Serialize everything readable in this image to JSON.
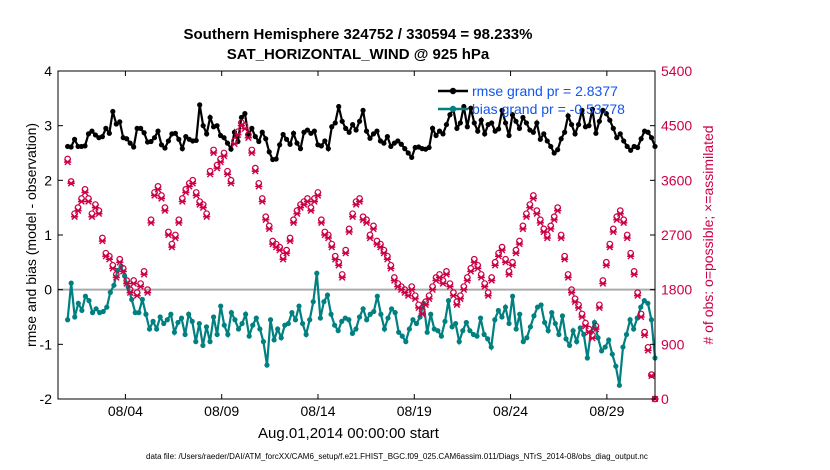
{
  "chart_data": {
    "type": "line",
    "title": "Southern Hemisphere 324752 / 330594 = 98.233%",
    "subtitle": "SAT_HORIZONTAL_WIND @ 925 hPa",
    "xlabel": "Aug.01,2014 00:00:00 start",
    "ylabel_left": "rmse and bias (model - observation)",
    "ylabel_right": "# of obs: o=possible; ×=assimilated",
    "footer": "data file: /Users/raeder/DAI/ATM_forcXX/CAM6_setup/f.e21.FHIST_BGC.f09_025.CAM6assim.011/Diags_NTrS_2014-08/obs_diag_output.nc",
    "x_range_days": [
      0.5,
      31.5
    ],
    "x_ticks": [
      {
        "day": 4,
        "label": "08/04"
      },
      {
        "day": 9,
        "label": "08/09"
      },
      {
        "day": 14,
        "label": "08/14"
      },
      {
        "day": 19,
        "label": "08/19"
      },
      {
        "day": 24,
        "label": "08/24"
      },
      {
        "day": 29,
        "label": "08/29"
      }
    ],
    "y_left_range": [
      -2,
      4
    ],
    "y_left_ticks": [
      "-2",
      "-1",
      "0",
      "1",
      "2",
      "3",
      "4"
    ],
    "y_right_range": [
      0,
      5400
    ],
    "y_right_ticks": [
      "0",
      "900",
      "1800",
      "2700",
      "3600",
      "4500",
      "5400"
    ],
    "legend": [
      {
        "label": "rmse grand pr = 2.8377"
      },
      {
        "label": "bias grand pr = -0.53778"
      }
    ],
    "series": [
      {
        "name": "rmse",
        "axis": "left",
        "color": "#000000",
        "values": [
          2.62,
          2.61,
          2.75,
          2.62,
          2.62,
          2.63,
          2.85,
          2.9,
          2.83,
          2.78,
          2.8,
          2.95,
          2.86,
          3.26,
          3.03,
          3.07,
          2.78,
          2.76,
          2.68,
          2.61,
          2.95,
          2.95,
          2.87,
          2.7,
          2.71,
          2.78,
          2.9,
          2.65,
          2.59,
          2.72,
          2.85,
          2.86,
          2.75,
          2.58,
          2.8,
          2.75,
          2.72,
          2.73,
          3.38,
          3.0,
          2.85,
          3.15,
          2.98,
          3.0,
          2.82,
          2.78,
          2.68,
          2.57,
          2.88,
          2.71,
          3.15,
          3.22,
          2.83,
          2.95,
          2.8,
          2.71,
          2.88,
          2.76,
          2.52,
          2.38,
          2.39,
          2.65,
          2.84,
          2.75,
          2.66,
          2.86,
          2.68,
          2.58,
          2.88,
          2.92,
          2.86,
          2.9,
          2.65,
          2.63,
          2.72,
          2.58,
          2.98,
          3.05,
          3.35,
          3.08,
          2.95,
          2.88,
          3.02,
          2.92,
          3.08,
          3.28,
          2.9,
          2.77,
          2.85,
          2.9,
          2.72,
          2.68,
          2.8,
          2.62,
          2.68,
          2.72,
          2.66,
          2.58,
          2.5,
          2.42,
          2.6,
          2.61,
          2.58,
          2.57,
          2.6,
          2.95,
          2.82,
          2.9,
          2.85,
          3.02,
          3.2,
          3.3,
          2.95,
          3.05,
          3.35,
          2.98,
          3.32,
          3.05,
          2.9,
          3.1,
          2.85,
          3.02,
          3.05,
          2.9,
          2.94,
          3.28,
          3.05,
          2.82,
          3.2,
          3.08,
          2.95,
          3.15,
          3.05,
          2.92,
          2.88,
          3.05,
          2.75,
          2.85,
          2.72,
          2.62,
          2.5,
          2.56,
          2.76,
          2.88,
          3.18,
          3.02,
          2.85,
          3.02,
          3.28,
          2.98,
          3.0,
          3.3,
          2.86,
          3.08,
          3.28,
          3.22,
          3.1,
          2.95,
          2.78,
          2.85,
          2.72,
          2.62,
          2.55,
          2.62,
          2.6,
          2.76,
          2.9,
          2.88,
          2.78,
          2.62
        ]
      },
      {
        "name": "bias",
        "axis": "left",
        "color": "#008080",
        "values": [
          -0.55,
          0.12,
          -0.5,
          -0.25,
          -0.38,
          -0.12,
          -0.2,
          -0.42,
          -0.35,
          -0.42,
          -0.4,
          -0.32,
          -0.05,
          0.08,
          0.35,
          0.43,
          0.25,
          0.05,
          -0.18,
          -0.42,
          -0.42,
          -0.18,
          -0.45,
          -0.72,
          -0.58,
          -0.72,
          -0.5,
          -0.62,
          -0.55,
          -0.45,
          -0.78,
          -0.6,
          -0.52,
          -0.82,
          -0.45,
          -0.58,
          -0.95,
          -0.62,
          -1.02,
          -0.68,
          -0.95,
          -0.5,
          -0.82,
          -0.3,
          -0.65,
          -0.82,
          -0.42,
          -0.55,
          -0.72,
          -0.62,
          -0.45,
          -0.85,
          -0.65,
          -0.52,
          -0.72,
          -0.95,
          -1.38,
          -0.55,
          -0.92,
          -0.72,
          -0.88,
          -0.65,
          -0.62,
          -0.42,
          -0.55,
          -0.3,
          -0.62,
          -0.82,
          -0.55,
          -0.22,
          0.3,
          -0.52,
          -0.22,
          -0.1,
          -0.45,
          -0.65,
          -0.75,
          -0.58,
          -0.52,
          -0.55,
          -0.8,
          -0.72,
          -0.5,
          -0.35,
          -0.55,
          -0.45,
          -0.4,
          -0.12,
          -0.45,
          -0.72,
          -0.52,
          -0.35,
          -0.42,
          -0.78,
          -0.85,
          -0.95,
          -0.72,
          -0.55,
          -0.62,
          -0.5,
          -0.25,
          -0.78,
          -0.45,
          -0.72,
          -0.75,
          -0.85,
          -0.58,
          -0.2,
          -0.68,
          -0.62,
          -0.95,
          -0.75,
          -0.6,
          -0.75,
          -0.82,
          -0.85,
          -0.52,
          -0.82,
          -0.9,
          -1.05,
          -0.55,
          -0.38,
          -0.5,
          -0.32,
          -0.62,
          -0.12,
          -0.72,
          -0.45,
          -0.95,
          -0.88,
          -0.68,
          -0.48,
          -0.32,
          -0.28,
          -0.6,
          -0.75,
          -0.42,
          -0.62,
          -0.82,
          -0.48,
          -0.9,
          -1.02,
          -0.75,
          -0.95,
          -0.7,
          -0.82,
          -1.25,
          -0.78,
          -0.6,
          -0.88,
          -1.12,
          -1.05,
          -0.92,
          -1.18,
          -1.4,
          -1.75,
          -1.05,
          -0.82,
          -0.55,
          -0.72,
          -0.52,
          -0.32,
          -0.2,
          -0.25,
          -0.55,
          -1.25
        ]
      },
      {
        "name": "possible",
        "axis": "right",
        "marker": "o",
        "color": "#cc0044",
        "values": [
          3950,
          3580,
          3050,
          3150,
          3300,
          3450,
          3300,
          3050,
          3200,
          3100,
          2650,
          2400,
          2350,
          2200,
          2050,
          2300,
          2150,
          1950,
          1800,
          1950,
          1750,
          1900,
          2100,
          1800,
          2950,
          3400,
          3500,
          3350,
          3150,
          2750,
          2550,
          2700,
          2950,
          3300,
          3450,
          3550,
          3600,
          3400,
          3250,
          3200,
          3050,
          3750,
          4100,
          3850,
          3950,
          4050,
          3750,
          3600,
          4250,
          4400,
          4550,
          4500,
          4350,
          4100,
          3800,
          3550,
          3300,
          3000,
          2850,
          2600,
          2550,
          2500,
          2350,
          2450,
          2650,
          2950,
          3100,
          3200,
          3250,
          3300,
          3150,
          3300,
          3400,
          2950,
          2750,
          2700,
          2550,
          2350,
          2250,
          2050,
          2450,
          2800,
          3050,
          3250,
          3300,
          3000,
          2950,
          2700,
          2850,
          2600,
          2550,
          2450,
          2350,
          2200,
          2000,
          1900,
          1850,
          1800,
          1750,
          1850,
          1700,
          1550,
          1450,
          1600,
          1700,
          1850,
          2000,
          2050,
          1950,
          2100,
          1900,
          1750,
          1600,
          1700,
          1850,
          2000,
          2150,
          2300,
          2200,
          2050,
          1900,
          1750,
          2000,
          2250,
          2400,
          2500,
          2300,
          2100,
          2250,
          2450,
          2600,
          2850,
          3050,
          3200,
          3350,
          3100,
          2950,
          2800,
          2700,
          2850,
          3000,
          3150,
          2700,
          2350,
          2050,
          1800,
          1650,
          1550,
          1400,
          1250,
          1150,
          1050,
          1200,
          1550,
          1950,
          2250,
          2550,
          2800,
          3000,
          3100,
          2950,
          2700,
          2400,
          2100,
          1750,
          1400,
          1100,
          850,
          400,
          0
        ]
      },
      {
        "name": "assimilated",
        "axis": "right",
        "marker": "x",
        "color": "#cc0044",
        "values": [
          3900,
          3550,
          3000,
          3100,
          3250,
          3400,
          3250,
          3000,
          3150,
          3050,
          2600,
          2350,
          2300,
          2150,
          2000,
          2250,
          2100,
          1900,
          1750,
          1900,
          1700,
          1850,
          2050,
          1750,
          2900,
          3350,
          3450,
          3300,
          3100,
          2700,
          2500,
          2650,
          2900,
          3250,
          3400,
          3500,
          3550,
          3350,
          3200,
          3150,
          3000,
          3700,
          4050,
          3800,
          3900,
          4000,
          3700,
          3550,
          4200,
          4350,
          4500,
          4450,
          4300,
          4050,
          3750,
          3500,
          3250,
          2950,
          2800,
          2550,
          2500,
          2450,
          2300,
          2400,
          2600,
          2900,
          3050,
          3150,
          3200,
          3250,
          3100,
          3250,
          3350,
          2900,
          2700,
          2650,
          2500,
          2300,
          2200,
          2000,
          2400,
          2750,
          3000,
          3200,
          3250,
          2950,
          2900,
          2650,
          2800,
          2550,
          2500,
          2400,
          2300,
          2150,
          1950,
          1850,
          1800,
          1750,
          1700,
          1800,
          1650,
          1500,
          1400,
          1550,
          1650,
          1800,
          1950,
          2000,
          1900,
          2050,
          1850,
          1700,
          1550,
          1650,
          1800,
          1950,
          2100,
          2250,
          2150,
          2000,
          1850,
          1700,
          1950,
          2200,
          2350,
          2450,
          2250,
          2050,
          2200,
          2400,
          2550,
          2800,
          3000,
          3150,
          3300,
          3050,
          2900,
          2750,
          2650,
          2800,
          2950,
          3100,
          2650,
          2300,
          2000,
          1750,
          1600,
          1500,
          1350,
          1200,
          1100,
          1000,
          1150,
          1500,
          1900,
          2200,
          2500,
          2750,
          2950,
          3050,
          2900,
          2650,
          2350,
          2050,
          1700,
          1350,
          1050,
          800,
          380,
          0
        ]
      }
    ]
  }
}
